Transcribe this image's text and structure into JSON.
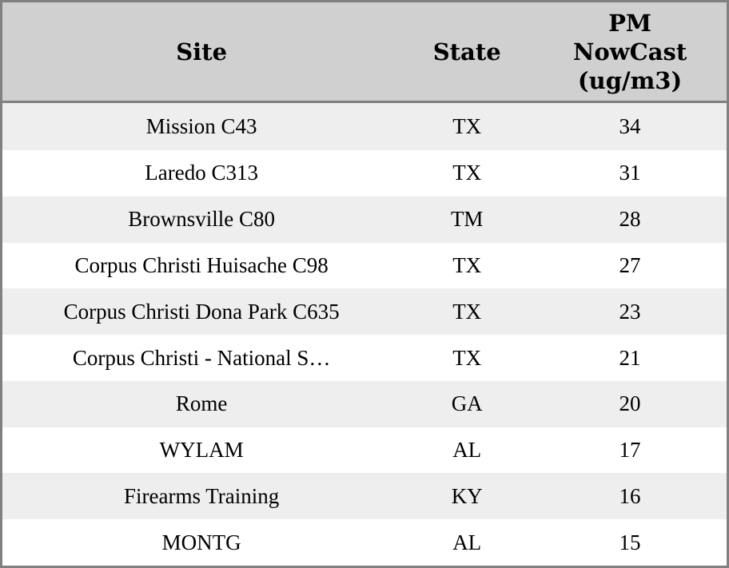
{
  "colors": {
    "border": "#808080",
    "header_bg": "#d0d0d0",
    "row_bg": "#ffffff",
    "row_alt_bg": "#eeeeee",
    "text": "#000000"
  },
  "header": {
    "site": "Site",
    "state": "State",
    "pm": "PM\nNowCast\n(ug/m3)"
  },
  "rows": [
    {
      "site": "Mission C43",
      "state": "TX",
      "pm": "34"
    },
    {
      "site": "Laredo C313",
      "state": "TX",
      "pm": "31"
    },
    {
      "site": "Brownsville C80",
      "state": "TM",
      "pm": "28"
    },
    {
      "site": "Corpus Christi Huisache C98",
      "state": "TX",
      "pm": "27"
    },
    {
      "site": "Corpus Christi Dona Park C635",
      "state": "TX",
      "pm": "23"
    },
    {
      "site": "Corpus Christi - National S…",
      "state": "TX",
      "pm": "21"
    },
    {
      "site": "Rome",
      "state": "GA",
      "pm": "20"
    },
    {
      "site": "WYLAM",
      "state": "AL",
      "pm": "17"
    },
    {
      "site": "Firearms Training",
      "state": "KY",
      "pm": "16"
    },
    {
      "site": "MONTG",
      "state": "AL",
      "pm": "15"
    }
  ],
  "chart_data": {
    "type": "table",
    "title": "PM NowCast by monitoring site",
    "columns": [
      "Site",
      "State",
      "PM NowCast (ug/m3)"
    ],
    "rows": [
      [
        "Mission C43",
        "TX",
        34
      ],
      [
        "Laredo C313",
        "TX",
        31
      ],
      [
        "Brownsville C80",
        "TM",
        28
      ],
      [
        "Corpus Christi Huisache C98",
        "TX",
        27
      ],
      [
        "Corpus Christi Dona Park C635",
        "TX",
        23
      ],
      [
        "Corpus Christi - National S…",
        "TX",
        21
      ],
      [
        "Rome",
        "GA",
        20
      ],
      [
        "WYLAM",
        "AL",
        17
      ],
      [
        "Firearms Training",
        "KY",
        16
      ],
      [
        "MONTG",
        "AL",
        15
      ]
    ]
  }
}
